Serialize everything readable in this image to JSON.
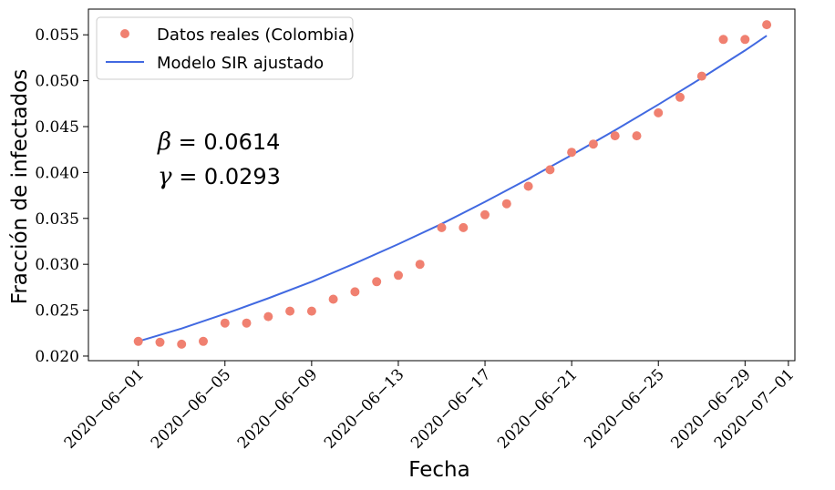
{
  "chart_data": {
    "type": "scatter",
    "xlabel": "Fecha",
    "ylabel": "Fracción de infectados",
    "ylim": [
      0.0195,
      0.0578
    ],
    "xlim": [
      "2020-05-29T16:48",
      "2020-07-01T07:12"
    ],
    "grid": false,
    "legend_position": "top-left",
    "x_ticks": [
      "2020-06-01",
      "2020-06-05",
      "2020-06-09",
      "2020-06-13",
      "2020-06-17",
      "2020-06-21",
      "2020-06-25",
      "2020-06-29",
      "2020-07-01"
    ],
    "y_ticks": [
      "0.020",
      "0.025",
      "0.030",
      "0.035",
      "0.040",
      "0.045",
      "0.050",
      "0.055"
    ],
    "series": [
      {
        "name": "Datos reales (Colombia)",
        "kind": "points",
        "color": "#f08070",
        "x": [
          "2020-06-01",
          "2020-06-02",
          "2020-06-03",
          "2020-06-04",
          "2020-06-05",
          "2020-06-06",
          "2020-06-07",
          "2020-06-08",
          "2020-06-09",
          "2020-06-10",
          "2020-06-11",
          "2020-06-12",
          "2020-06-13",
          "2020-06-14",
          "2020-06-15",
          "2020-06-16",
          "2020-06-17",
          "2020-06-18",
          "2020-06-19",
          "2020-06-20",
          "2020-06-21",
          "2020-06-22",
          "2020-06-23",
          "2020-06-24",
          "2020-06-25",
          "2020-06-26",
          "2020-06-27",
          "2020-06-28",
          "2020-06-29",
          "2020-06-30"
        ],
        "y": [
          0.0216,
          0.0215,
          0.0213,
          0.0216,
          0.0236,
          0.0236,
          0.0243,
          0.0249,
          0.0249,
          0.0262,
          0.027,
          0.0281,
          0.0288,
          0.03,
          0.034,
          0.034,
          0.0354,
          0.0366,
          0.0385,
          0.0403,
          0.0422,
          0.0431,
          0.044,
          0.044,
          0.0465,
          0.0482,
          0.0505,
          0.0545,
          0.0545,
          0.0561
        ]
      },
      {
        "name": "Modelo SIR ajustado",
        "kind": "line",
        "color": "#4169e1",
        "x": [
          "2020-06-01",
          "2020-06-03",
          "2020-06-05",
          "2020-06-07",
          "2020-06-09",
          "2020-06-11",
          "2020-06-13",
          "2020-06-15",
          "2020-06-17",
          "2020-06-19",
          "2020-06-21",
          "2020-06-23",
          "2020-06-25",
          "2020-06-27",
          "2020-06-29",
          "2020-06-30"
        ],
        "y": [
          0.0216,
          0.023,
          0.0246,
          0.0263,
          0.0281,
          0.0301,
          0.0322,
          0.0344,
          0.0368,
          0.0393,
          0.0419,
          0.0446,
          0.0474,
          0.0503,
          0.0533,
          0.0549
        ]
      }
    ],
    "annotations": [
      {
        "symbol": "β",
        "text": "= 0.0614"
      },
      {
        "symbol": "γ",
        "text": "= 0.0293"
      }
    ]
  }
}
